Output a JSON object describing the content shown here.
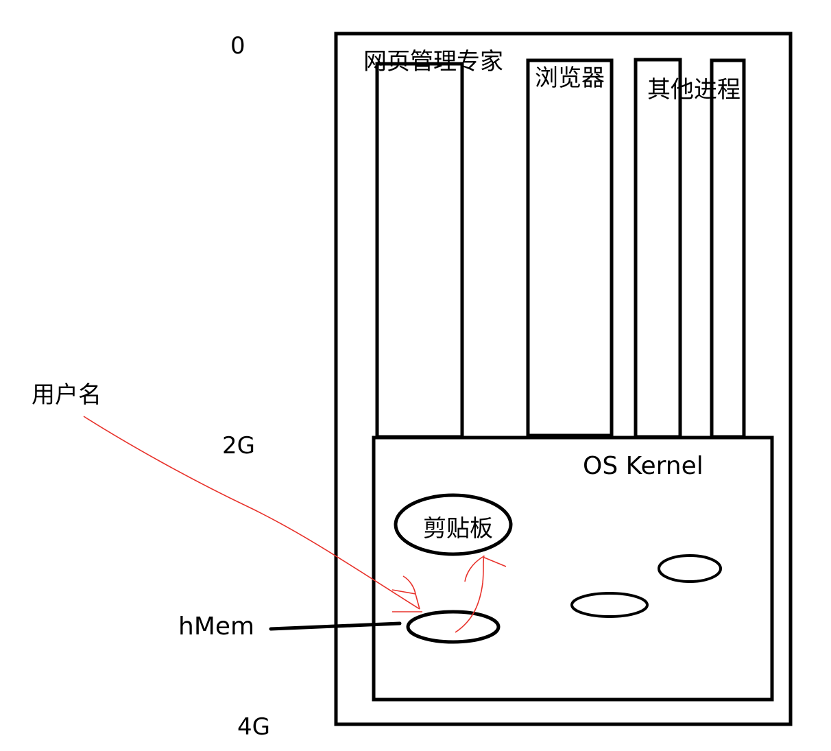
{
  "address_labels": {
    "top": "0",
    "middle": "2G",
    "bottom": "4G"
  },
  "processes": {
    "web_manager": "网页管理专家",
    "browser": "浏览器",
    "other": "其他进程"
  },
  "kernel": {
    "title": "OS Kernel",
    "clipboard": "剪贴板"
  },
  "annotations": {
    "username": "用户名",
    "handle": "hMem"
  },
  "colors": {
    "stroke": "#000000",
    "arrow": "#e8322b"
  }
}
